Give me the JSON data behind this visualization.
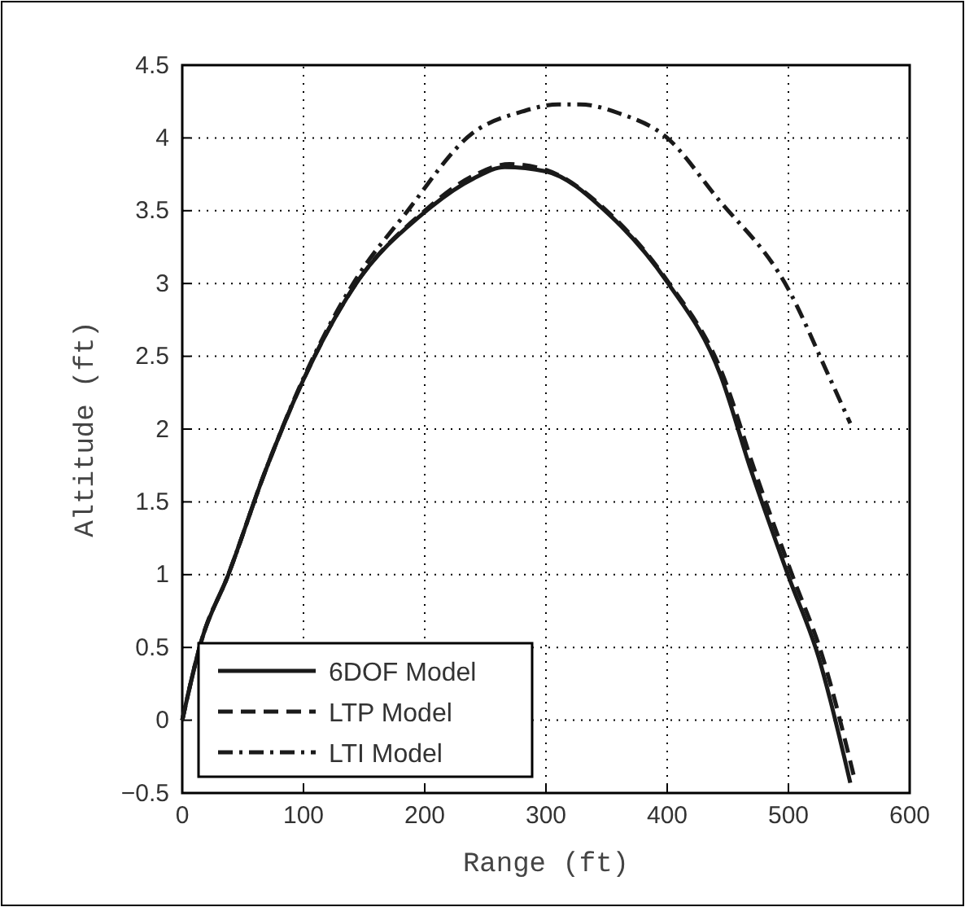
{
  "chart_data": {
    "type": "line",
    "xlabel": "Range (ft)",
    "ylabel": "Altitude (ft)",
    "xlim": [
      0,
      600
    ],
    "xticks": [
      0,
      100,
      200,
      300,
      400,
      500,
      600
    ],
    "ylim": [
      -0.5,
      4.5
    ],
    "yticks": [
      {
        "value": -0.5,
        "label": "−0.5"
      },
      0,
      0.5,
      1,
      1.5,
      2,
      2.5,
      3,
      3.5,
      4,
      4.5
    ],
    "grid": true,
    "legend": "bottom left",
    "marker": "none",
    "series": [
      {
        "name": "6DOF Model",
        "color": "#1a1a1a",
        "line_style": "solid",
        "x": [
          0,
          15.6,
          38,
          68,
          100,
          141,
          200,
          240,
          266,
          300,
          350,
          400,
          444,
          469,
          500,
          525,
          551
        ],
        "values": [
          0,
          0.54,
          1.0,
          1.7,
          2.34,
          2.97,
          3.49,
          3.72,
          3.8,
          3.77,
          3.49,
          3.01,
          2.37,
          1.72,
          0.99,
          0.43,
          -0.43
        ]
      },
      {
        "name": "LTP Model",
        "color": "#1a1a1a",
        "line_style": "dashed",
        "x": [
          0,
          15.6,
          38,
          68,
          100,
          141,
          200,
          240,
          270,
          300,
          350,
          400,
          446,
          472,
          503,
          528,
          555
        ],
        "values": [
          0,
          0.54,
          1.0,
          1.7,
          2.34,
          2.97,
          3.5,
          3.74,
          3.82,
          3.78,
          3.5,
          3.02,
          2.37,
          1.72,
          1.0,
          0.44,
          -0.42
        ]
      },
      {
        "name": "LTI Model",
        "color": "#1a1a1a",
        "line_style": "dashdot",
        "x": [
          0,
          15.6,
          38,
          68,
          100,
          141,
          185,
          239,
          280,
          310,
          328,
          360,
          400,
          440,
          500,
          533,
          551
        ],
        "values": [
          0,
          0.54,
          1.0,
          1.7,
          2.35,
          3.0,
          3.49,
          4.03,
          4.18,
          4.23,
          4.23,
          4.17,
          4.0,
          3.6,
          2.96,
          2.37,
          2.04
        ]
      }
    ]
  }
}
